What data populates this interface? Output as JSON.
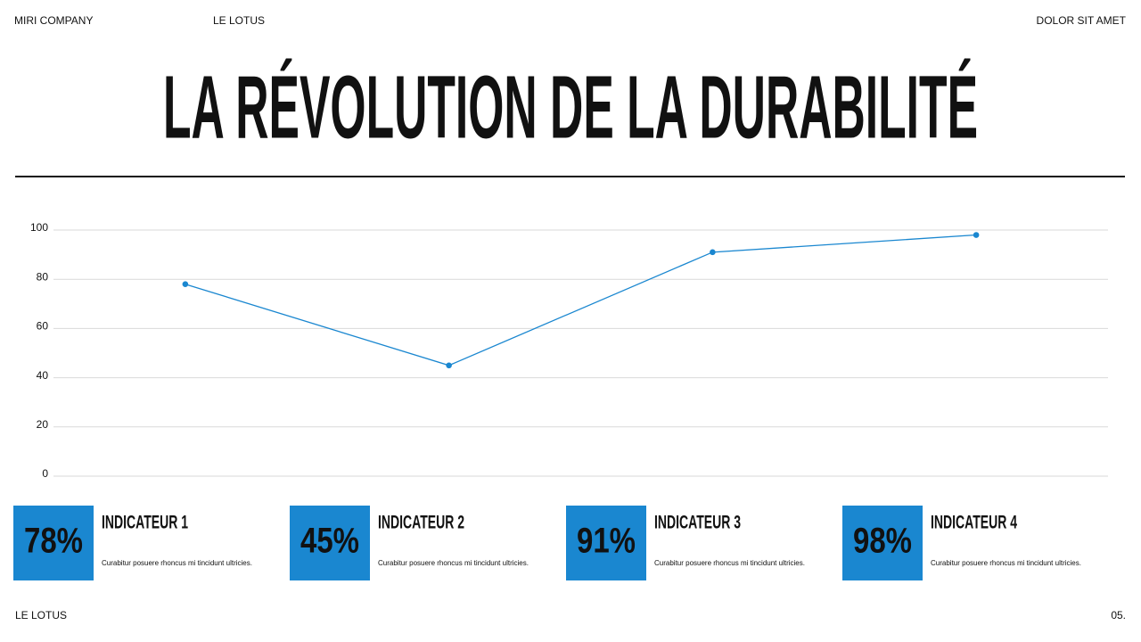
{
  "header": {
    "left": "MIRI COMPANY",
    "center": "LE LOTUS",
    "right": "DOLOR SIT AMET"
  },
  "title": "LA RÉVOLUTION DE LA DURABILITÉ",
  "chart_data": {
    "type": "line",
    "categories": [
      null,
      null,
      null,
      null
    ],
    "series": [
      {
        "color": "#1a87d0",
        "values": [
          78,
          45,
          91,
          98
        ]
      }
    ],
    "ylim": [
      0,
      100
    ],
    "yticks": [
      0,
      20,
      40,
      60,
      80,
      100
    ],
    "grid": true
  },
  "indicators": [
    {
      "value": "78%",
      "title": "INDICATEUR 1",
      "text": "Curabitur posuere rhoncus mi tincidunt ultricies."
    },
    {
      "value": "45%",
      "title": "INDICATEUR 2",
      "text": "Curabitur posuere rhoncus mi tincidunt ultricies."
    },
    {
      "value": "91%",
      "title": "INDICATEUR 3",
      "text": "Curabitur posuere rhoncus mi tincidunt ultricies."
    },
    {
      "value": "98%",
      "title": "INDICATEUR 4",
      "text": "Curabitur posuere rhoncus mi tincidunt ultricies."
    }
  ],
  "footer": {
    "left": "LE LOTUS",
    "right": "05."
  }
}
